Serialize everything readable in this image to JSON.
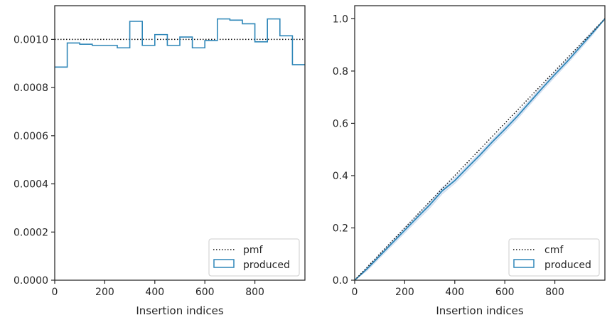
{
  "colors": {
    "produced": "#2e86b8",
    "produced_light": "#c9d8ee",
    "reference": "#111111",
    "frame": "#262626",
    "legend_border": "#cccccc"
  },
  "chart_data": [
    {
      "type": "histogram-step",
      "xlabel": "Insertion indices",
      "ylabel": "",
      "xlim": [
        0,
        1000
      ],
      "ylim": [
        0,
        0.00114
      ],
      "xticks": [
        0,
        200,
        400,
        600,
        800
      ],
      "xtick_labels": [
        "0",
        "200",
        "400",
        "600",
        "800"
      ],
      "yticks": [
        0,
        0.0002,
        0.0004,
        0.0006,
        0.0008,
        0.001
      ],
      "ytick_labels": [
        "0.0000",
        "0.0002",
        "0.0004",
        "0.0006",
        "0.0008",
        "0.0010"
      ],
      "reference_line": {
        "name": "pmf",
        "value": 0.001
      },
      "series": [
        {
          "name": "produced",
          "bin_edges": [
            0,
            50,
            100,
            150,
            200,
            250,
            300,
            350,
            400,
            450,
            500,
            550,
            600,
            650,
            700,
            750,
            800,
            850,
            900,
            950,
            1000
          ],
          "values": [
            0.000885,
            0.000985,
            0.00098,
            0.000975,
            0.000975,
            0.000965,
            0.001075,
            0.000975,
            0.00102,
            0.000975,
            0.00101,
            0.000965,
            0.000995,
            0.001085,
            0.00108,
            0.001065,
            0.00099,
            0.001085,
            0.001015,
            0.000895
          ]
        }
      ],
      "legend": {
        "position": "lower-right",
        "entries": [
          "pmf",
          "produced"
        ]
      }
    },
    {
      "type": "line",
      "xlabel": "Insertion indices",
      "ylabel": "",
      "xlim": [
        0,
        1000
      ],
      "ylim": [
        0,
        1.05
      ],
      "xticks": [
        0,
        200,
        400,
        600,
        800
      ],
      "xtick_labels": [
        "0",
        "200",
        "400",
        "600",
        "800"
      ],
      "yticks": [
        0,
        0.2,
        0.4,
        0.6,
        0.8,
        1.0
      ],
      "ytick_labels": [
        "0.0",
        "0.2",
        "0.4",
        "0.6",
        "0.8",
        "1.0"
      ],
      "reference_line": {
        "name": "cmf",
        "x": [
          0,
          1000
        ],
        "y": [
          0,
          1.0
        ]
      },
      "series": [
        {
          "name": "produced",
          "x": [
            0,
            50,
            100,
            150,
            200,
            250,
            300,
            350,
            400,
            450,
            500,
            550,
            600,
            650,
            700,
            750,
            800,
            850,
            900,
            950,
            1000
          ],
          "y": [
            0,
            0.044,
            0.093,
            0.142,
            0.191,
            0.24,
            0.288,
            0.342,
            0.381,
            0.43,
            0.478,
            0.529,
            0.577,
            0.627,
            0.681,
            0.735,
            0.787,
            0.837,
            0.891,
            0.945,
            1.0
          ]
        },
        {
          "name": "produced-band-upper",
          "x": [
            0,
            50,
            100,
            150,
            200,
            250,
            300,
            350,
            400,
            450,
            500,
            550,
            600,
            650,
            700,
            750,
            800,
            850,
            900,
            950,
            1000
          ],
          "y": [
            0,
            0.05,
            0.1,
            0.15,
            0.2,
            0.25,
            0.3,
            0.355,
            0.392,
            0.44,
            0.488,
            0.538,
            0.587,
            0.638,
            0.69,
            0.743,
            0.795,
            0.845,
            0.9,
            0.952,
            1.0
          ]
        },
        {
          "name": "produced-band-lower",
          "x": [
            0,
            50,
            100,
            150,
            200,
            250,
            300,
            350,
            400,
            450,
            500,
            550,
            600,
            650,
            700,
            750,
            800,
            850,
            900,
            950,
            1000
          ],
          "y": [
            0,
            0.037,
            0.085,
            0.133,
            0.181,
            0.229,
            0.276,
            0.33,
            0.37,
            0.418,
            0.467,
            0.518,
            0.566,
            0.616,
            0.671,
            0.725,
            0.777,
            0.828,
            0.882,
            0.937,
            1.0
          ]
        }
      ],
      "legend": {
        "position": "lower-right",
        "entries": [
          "cmf",
          "produced"
        ]
      }
    }
  ]
}
